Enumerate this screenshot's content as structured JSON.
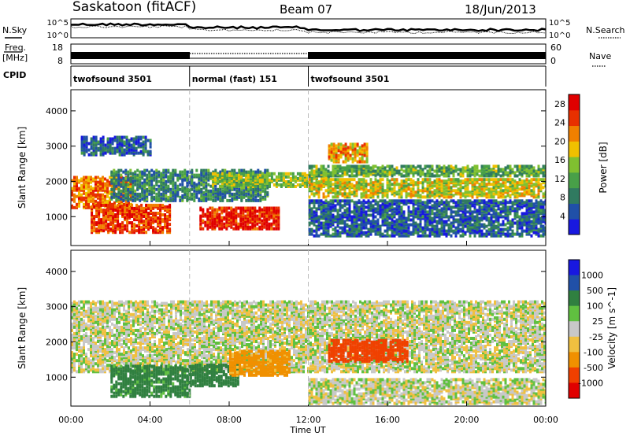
{
  "header": {
    "station": "Saskatoon (fitACF)",
    "beam": "Beam 07",
    "date": "18/Jun/2013"
  },
  "status_panels": {
    "nsky_label": "N.Sky",
    "nsearch_label": "N.Search",
    "freq_label_1": "Freq.",
    "freq_label_2": "[MHz]",
    "nave_label": "Nave",
    "cpid_label": "CPID",
    "noise_ticks": [
      "10^5",
      "10^0"
    ],
    "freq_ticks": [
      "18",
      "8"
    ],
    "nave_ticks": [
      "60",
      "0"
    ]
  },
  "cpid_segments": [
    {
      "label": "twofsound 3501",
      "start_hour": 0,
      "end_hour": 6
    },
    {
      "label": "normal (fast) 151",
      "start_hour": 6,
      "end_hour": 12
    },
    {
      "label": "twofsound 3501",
      "start_hour": 12,
      "end_hour": 24
    }
  ],
  "colors": {
    "power": [
      "#1818e0",
      "#2050a8",
      "#307a60",
      "#48a048",
      "#80c030",
      "#f0c000",
      "#f08000",
      "#e83000",
      "#e00000"
    ],
    "velocity": [
      "#e00000",
      "#f04000",
      "#f09000",
      "#f0c040",
      "#c8c8c8",
      "#c0c0c0",
      "#60c040",
      "#308040",
      "#2050a8",
      "#1818e0"
    ]
  },
  "chart_data": [
    {
      "type": "heatmap",
      "title": "",
      "xlabel": "",
      "ylabel": "Slant Range [km]",
      "x_ticks": [
        "00:00",
        "04:00",
        "08:00",
        "12:00",
        "16:00",
        "20:00",
        "00:00"
      ],
      "xlim_hours": [
        0,
        24
      ],
      "ylim": [
        180,
        4600
      ],
      "y_ticks": [
        1000,
        2000,
        3000,
        4000
      ],
      "colorbar": {
        "label": "Power [dB]",
        "ticks": [
          4,
          8,
          12,
          16,
          20,
          24,
          28
        ],
        "range": [
          0,
          30
        ]
      },
      "bands": [
        {
          "start": 0.0,
          "end": 3.0,
          "range_lo": 1300,
          "range_hi": 2200,
          "value": 22
        },
        {
          "start": 1.0,
          "end": 5.0,
          "range_lo": 600,
          "range_hi": 1400,
          "value": 25
        },
        {
          "start": 6.5,
          "end": 10.5,
          "range_lo": 700,
          "range_hi": 1300,
          "value": 27
        },
        {
          "start": 2.0,
          "end": 10.0,
          "range_lo": 1500,
          "range_hi": 2400,
          "value": 9
        },
        {
          "start": 7.0,
          "end": 13.0,
          "range_lo": 1900,
          "range_hi": 2300,
          "value": 15
        },
        {
          "start": 12.0,
          "end": 24.0,
          "range_lo": 1600,
          "range_hi": 2100,
          "value": 17
        },
        {
          "start": 12.0,
          "end": 24.0,
          "range_lo": 2200,
          "range_hi": 2500,
          "value": 12
        },
        {
          "start": 12.0,
          "end": 24.0,
          "range_lo": 500,
          "range_hi": 1500,
          "value": 6
        },
        {
          "start": 13.0,
          "end": 15.0,
          "range_lo": 2600,
          "range_hi": 3100,
          "value": 20
        },
        {
          "start": 0.5,
          "end": 4.0,
          "range_lo": 2800,
          "range_hi": 3300,
          "value": 6
        }
      ]
    },
    {
      "type": "heatmap",
      "title": "",
      "xlabel": "Time UT",
      "ylabel": "Slant Range [km]",
      "x_ticks": [
        "00:00",
        "04:00",
        "08:00",
        "12:00",
        "16:00",
        "20:00",
        "00:00"
      ],
      "xlim_hours": [
        0,
        24
      ],
      "ylim": [
        180,
        4600
      ],
      "y_ticks": [
        1000,
        2000,
        3000,
        4000
      ],
      "colorbar": {
        "label": "Velocity [m s^-1]",
        "ticks": [
          "1000",
          "500",
          "100",
          "25",
          "-25",
          "-100",
          "-500",
          "-1000"
        ]
      },
      "bands": [
        {
          "start": 0.0,
          "end": 24.0,
          "range_lo": 1200,
          "range_hi": 3200,
          "value": 0
        },
        {
          "start": 2.0,
          "end": 6.0,
          "range_lo": 500,
          "range_hi": 1400,
          "value": 150
        },
        {
          "start": 6.0,
          "end": 8.5,
          "range_lo": 800,
          "range_hi": 1400,
          "value": 250
        },
        {
          "start": 8.0,
          "end": 11.0,
          "range_lo": 1100,
          "range_hi": 1800,
          "value": -150
        },
        {
          "start": 13.0,
          "end": 17.0,
          "range_lo": 1500,
          "range_hi": 2100,
          "value": -600
        },
        {
          "start": 12.0,
          "end": 24.0,
          "range_lo": 300,
          "range_hi": 1000,
          "value": 0
        }
      ]
    }
  ]
}
